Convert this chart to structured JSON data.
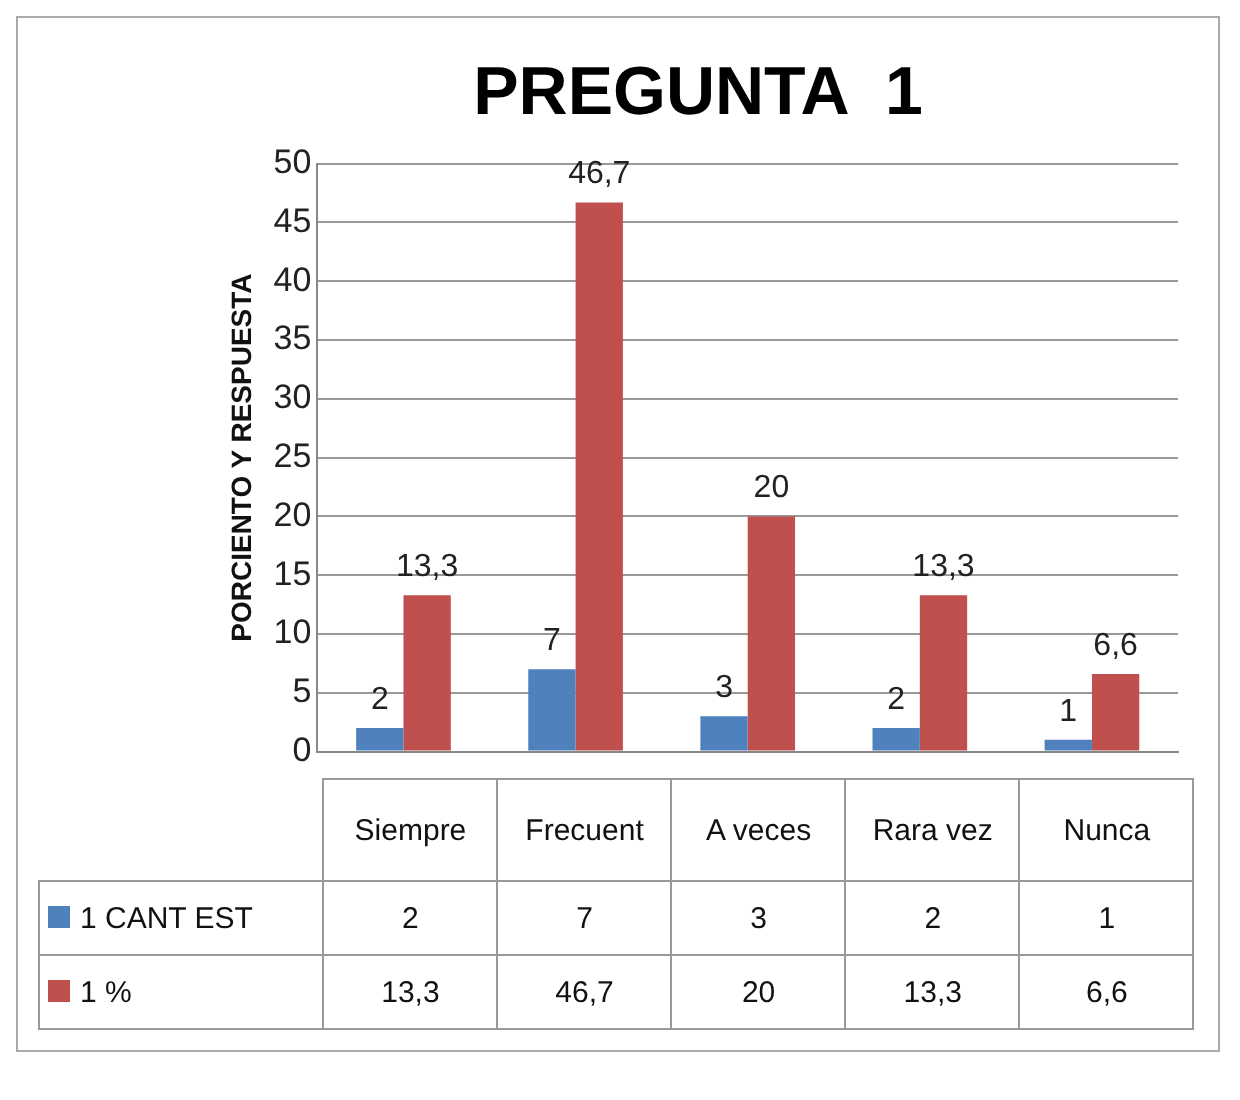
{
  "chart_data": {
    "type": "bar",
    "title": "PREGUNTA  1",
    "ylabel": "PORCIENTO Y RESPUESTA",
    "categories": [
      "Siempre",
      "Frecuent",
      "A veces",
      "Rara vez",
      "Nunca"
    ],
    "series": [
      {
        "name": "1 CANT EST",
        "color": "#4f81bd",
        "values": [
          2,
          7,
          3,
          2,
          1
        ],
        "value_labels": [
          "2",
          "7",
          "3",
          "2",
          "1"
        ]
      },
      {
        "name": "1 %",
        "color": "#c0504d",
        "values": [
          13.3,
          46.7,
          20,
          13.3,
          6.6
        ],
        "value_labels": [
          "13,3",
          "46,7",
          "20",
          "13,3",
          "6,6"
        ]
      }
    ],
    "ylim": [
      0,
      50
    ],
    "yticks": [
      0,
      5,
      10,
      15,
      20,
      25,
      30,
      35,
      40,
      45,
      50
    ],
    "grid": "y",
    "legend": "bottom"
  }
}
